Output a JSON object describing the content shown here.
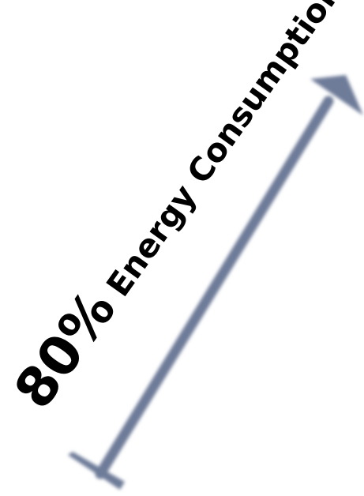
{
  "label": {
    "percent": "80%",
    "text": "Energy Consumption"
  },
  "colors": {
    "arrow": "#6e7c99",
    "text": "#000000",
    "background": "#ffffff"
  },
  "icons": {
    "arrow": "diagonal-up-arrow-icon"
  }
}
